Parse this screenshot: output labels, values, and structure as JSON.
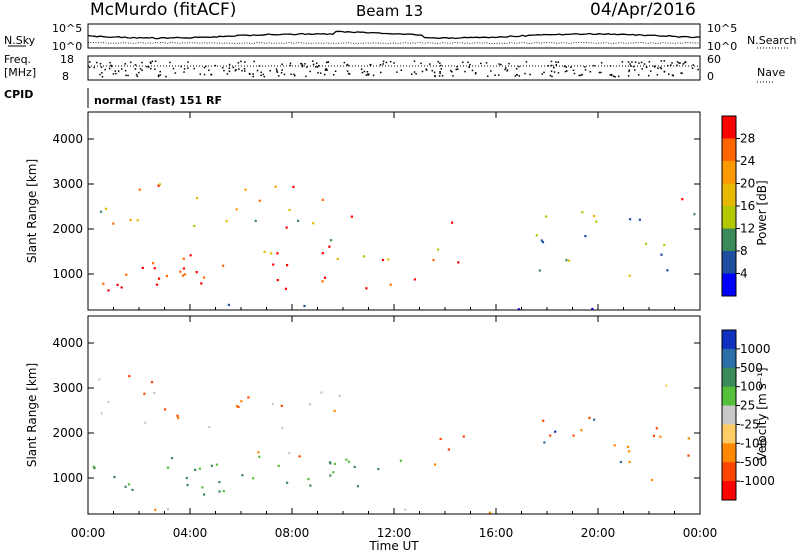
{
  "header": {
    "title": "McMurdo (fitACF)",
    "beam": "Beam 13",
    "date": "04/Apr/2016"
  },
  "strips": {
    "nsky_label": "N.Sky",
    "nsearch_label": "N.Search",
    "freq_label_1": "Freq.",
    "freq_label_2": "[MHz]",
    "nave_label": "Nave",
    "cpid_label": "CPID",
    "cpid_text": "normal (fast) 151 RF",
    "noise_ticks_left": [
      "10^5",
      "10^0"
    ],
    "noise_ticks_right": [
      "10^5",
      "10^0"
    ],
    "freq_ticks": [
      "18",
      "8"
    ],
    "nave_ticks": [
      "60",
      "0"
    ]
  },
  "chart_data": [
    {
      "type": "heatmap",
      "name": "power",
      "ylabel": "Slant Range [km]",
      "yticks": [
        "4000",
        "3000",
        "2000",
        "1000"
      ],
      "ylim": [
        200,
        4600
      ],
      "xlim": [
        0,
        24
      ],
      "colorbar_label": "Power [dB]",
      "colorbar_ticks": [
        "28",
        "24",
        "20",
        "16",
        "12",
        "8",
        "4"
      ],
      "colorbar_colors": [
        "#ff0000",
        "#ff6600",
        "#ff9900",
        "#e6b800",
        "#b2c800",
        "#3a8a5a",
        "#1f4fa0",
        "#0000ff"
      ]
    },
    {
      "type": "heatmap",
      "name": "velocity",
      "ylabel": "Slant Range [km]",
      "yticks": [
        "4000",
        "3000",
        "2000",
        "1000"
      ],
      "ylim": [
        200,
        4600
      ],
      "xlim": [
        0,
        24
      ],
      "colorbar_label": "Velocity [m s⁻¹]",
      "colorbar_ticks": [
        "1000",
        "500",
        "100",
        "25",
        "-25",
        "-100",
        "-500",
        "-1000"
      ],
      "colorbar_colors": [
        "#1030c0",
        "#2a6fa8",
        "#3a8a5a",
        "#55c03a",
        "#c8c8c8",
        "#ffcc66",
        "#ff8800",
        "#ff4400",
        "#ff0000"
      ]
    }
  ],
  "xaxis": {
    "ticks": [
      "00:00",
      "04:00",
      "08:00",
      "12:00",
      "16:00",
      "20:00",
      "00:00"
    ],
    "label": "Time UT"
  }
}
